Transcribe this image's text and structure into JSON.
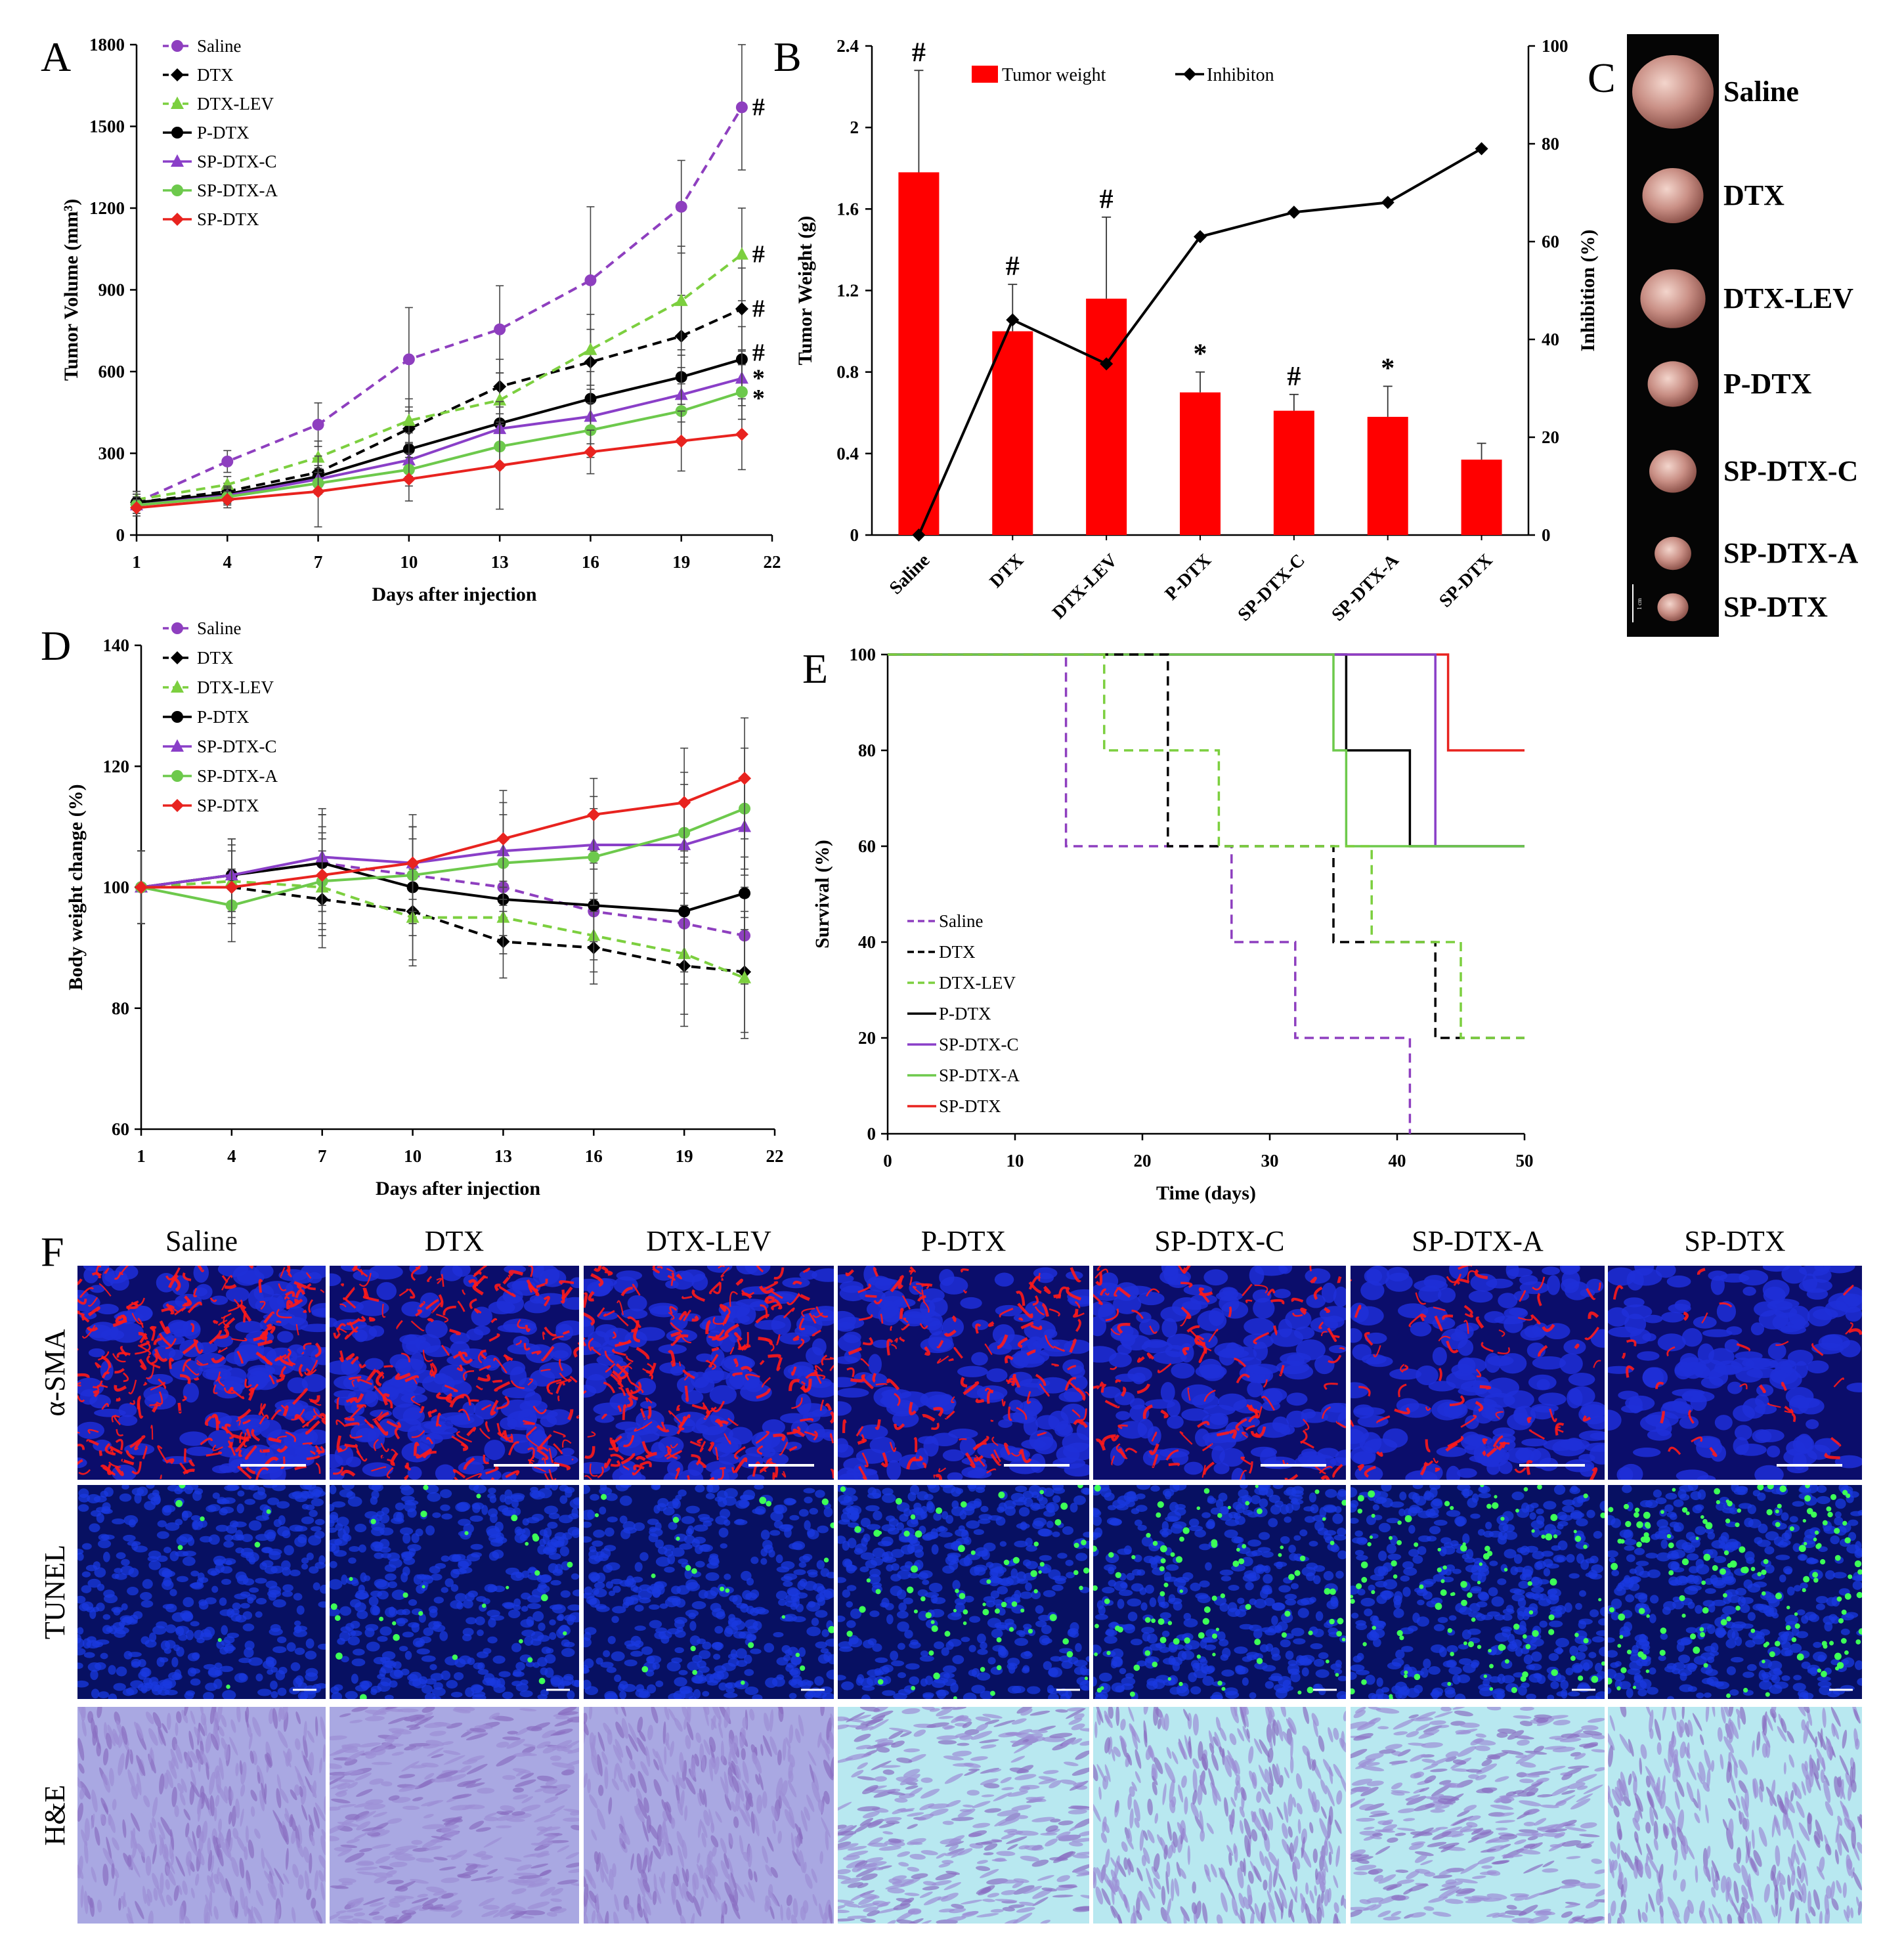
{
  "colors": {
    "Saline": "#8e3fbf",
    "DTX": "#000000",
    "DTX-LEV": "#7ccf3f",
    "P-DTX": "#000000",
    "SP-DTX-C": "#8a3fc8",
    "SP-DTX-A": "#6dc94c",
    "SP-DTX": "#e8231f",
    "bar_fill": "#ff0000",
    "nucleus_blue": "#1f2fd8",
    "sma_red": "#ff1a1a",
    "tunel_green": "#3dff57",
    "he_background": "#a9a8e2",
    "he_light": "#b8e8f0"
  },
  "chart_data": [
    {
      "panel": "A",
      "type": "line",
      "title": "",
      "xlabel": "Days after injection",
      "ylabel": "Tumor Volume (mm³)",
      "xlim": [
        1,
        22
      ],
      "ylim": [
        0,
        1800
      ],
      "xticks": [
        "1",
        "4",
        "7",
        "10",
        "13",
        "16",
        "19",
        "22"
      ],
      "yticks": [
        "0",
        "300",
        "600",
        "900",
        "1200",
        "1500",
        "1800"
      ],
      "x": [
        1,
        4,
        7,
        10,
        13,
        16,
        19,
        21
      ],
      "series": [
        {
          "name": "Saline",
          "style": "dashed",
          "marker": "circle",
          "values": [
            120,
            270,
            405,
            645,
            755,
            935,
            1205,
            1570
          ],
          "errors": [
            40,
            40,
            80,
            190,
            160,
            270,
            170,
            230
          ],
          "sig": "#"
        },
        {
          "name": "DTX",
          "style": "dashed",
          "marker": "diamond",
          "values": [
            120,
            160,
            230,
            390,
            545,
            635,
            730,
            830
          ],
          "errors": [
            30,
            30,
            50,
            80,
            100,
            120,
            150,
            150
          ],
          "sig": "#"
        },
        {
          "name": "DTX-LEV",
          "style": "dashed",
          "marker": "triangle",
          "values": [
            130,
            185,
            285,
            420,
            495,
            680,
            860,
            1030
          ],
          "errors": [
            30,
            30,
            60,
            80,
            100,
            130,
            200,
            170
          ],
          "sig": "#"
        },
        {
          "name": "P-DTX",
          "style": "solid",
          "marker": "circle",
          "values": [
            120,
            150,
            215,
            315,
            410,
            500,
            580,
            645
          ],
          "errors": [
            30,
            30,
            40,
            60,
            80,
            100,
            100,
            120
          ],
          "sig": "#"
        },
        {
          "name": "SP-DTX-C",
          "style": "solid",
          "marker": "triangle",
          "values": [
            110,
            145,
            205,
            275,
            390,
            435,
            515,
            575
          ],
          "errors": [
            30,
            30,
            40,
            60,
            80,
            100,
            100,
            100
          ],
          "sig": "*"
        },
        {
          "name": "SP-DTX-A",
          "style": "solid",
          "marker": "circle",
          "values": [
            110,
            140,
            190,
            240,
            325,
            385,
            455,
            525
          ],
          "errors": [
            30,
            30,
            40,
            60,
            80,
            100,
            100,
            100
          ],
          "sig": "*"
        },
        {
          "name": "SP-DTX",
          "style": "solid",
          "marker": "diamond",
          "values": [
            100,
            130,
            160,
            205,
            255,
            305,
            345,
            370
          ],
          "errors": [
            30,
            30,
            130,
            80,
            160,
            80,
            110,
            130
          ],
          "sig": ""
        }
      ]
    },
    {
      "panel": "B",
      "type": "bar",
      "title": "",
      "xlabel": "",
      "ylabel": "Tumor Weight (g)",
      "y2label": "Inhibition (%)",
      "categories": [
        "Saline",
        "DTX",
        "DTX-LEV",
        "P-DTX",
        "SP-DTX-C",
        "SP-DTX-A",
        "SP-DTX"
      ],
      "ylim": [
        0,
        2.4
      ],
      "y2lim": [
        0,
        100
      ],
      "yticks": [
        "0",
        "0.4",
        "0.8",
        "1.2",
        "1.6",
        "2",
        "2.4"
      ],
      "y2ticks": [
        "0",
        "20",
        "40",
        "60",
        "80",
        "100"
      ],
      "legend": [
        "Tumor weight",
        "Inhibiton"
      ],
      "series": [
        {
          "name": "Tumor weight",
          "type": "bar",
          "values": [
            1.78,
            1.0,
            1.16,
            0.7,
            0.61,
            0.58,
            0.37
          ],
          "errors": [
            0.5,
            0.23,
            0.4,
            0.1,
            0.08,
            0.15,
            0.08
          ],
          "sig": [
            "#",
            "#",
            "#",
            "*",
            "#",
            "*",
            ""
          ]
        },
        {
          "name": "Inhibiton",
          "type": "line",
          "axis": "right",
          "values": [
            0,
            44,
            35,
            61,
            66,
            68,
            79
          ]
        }
      ]
    },
    {
      "panel": "D",
      "type": "line",
      "title": "",
      "xlabel": "Days after injection",
      "ylabel": "Body weight change (%)",
      "xlim": [
        1,
        22
      ],
      "ylim": [
        60,
        140
      ],
      "xticks": [
        "1",
        "4",
        "7",
        "10",
        "13",
        "16",
        "19",
        "22"
      ],
      "yticks": [
        "60",
        "80",
        "100",
        "120",
        "140"
      ],
      "x": [
        1,
        4,
        7,
        10,
        13,
        16,
        19,
        21
      ],
      "series": [
        {
          "name": "Saline",
          "style": "dashed",
          "marker": "circle",
          "values": [
            100,
            102,
            104,
            102,
            100,
            96,
            94,
            92
          ],
          "errors": [
            6,
            6,
            8,
            8,
            8,
            8,
            10,
            8
          ]
        },
        {
          "name": "DTX",
          "style": "dashed",
          "marker": "diamond",
          "values": [
            100,
            100,
            98,
            96,
            91,
            90,
            87,
            86
          ],
          "errors": [
            6,
            6,
            8,
            8,
            6,
            6,
            10,
            10
          ]
        },
        {
          "name": "DTX-LEV",
          "style": "dashed",
          "marker": "triangle",
          "values": [
            100,
            101,
            100,
            95,
            95,
            92,
            89,
            85
          ],
          "errors": [
            6,
            6,
            8,
            8,
            6,
            6,
            10,
            10
          ]
        },
        {
          "name": "P-DTX",
          "style": "solid",
          "marker": "circle",
          "values": [
            100,
            102,
            104,
            100,
            98,
            97,
            96,
            99
          ],
          "errors": [
            6,
            6,
            8,
            8,
            6,
            6,
            10,
            6
          ]
        },
        {
          "name": "SP-DTX-C",
          "style": "solid",
          "marker": "triangle",
          "values": [
            100,
            102,
            105,
            104,
            106,
            107,
            107,
            110
          ],
          "errors": [
            6,
            6,
            8,
            8,
            8,
            8,
            10,
            8
          ]
        },
        {
          "name": "SP-DTX-A",
          "style": "solid",
          "marker": "circle",
          "values": [
            100,
            97,
            101,
            102,
            104,
            105,
            109,
            113
          ],
          "errors": [
            6,
            6,
            8,
            8,
            8,
            8,
            10,
            10
          ]
        },
        {
          "name": "SP-DTX",
          "style": "solid",
          "marker": "diamond",
          "values": [
            100,
            100,
            102,
            104,
            108,
            112,
            114,
            118
          ],
          "errors": [
            6,
            6,
            8,
            6,
            8,
            6,
            9,
            10
          ]
        }
      ]
    },
    {
      "panel": "E",
      "type": "line",
      "title": "",
      "xlabel": "Time (days)",
      "ylabel": "Survival (%)",
      "xlim": [
        0,
        50
      ],
      "ylim": [
        0,
        100
      ],
      "xticks": [
        "0",
        "10",
        "20",
        "30",
        "40",
        "50"
      ],
      "yticks": [
        "0",
        "20",
        "40",
        "60",
        "80",
        "100"
      ],
      "series": [
        {
          "name": "Saline",
          "style": "dashed",
          "steps": [
            [
              0,
              100
            ],
            [
              14,
              60
            ],
            [
              27,
              40
            ],
            [
              32,
              20
            ],
            [
              41,
              0
            ]
          ]
        },
        {
          "name": "DTX",
          "style": "dashed",
          "steps": [
            [
              0,
              100
            ],
            [
              22,
              60
            ],
            [
              35,
              40
            ],
            [
              43,
              20
            ],
            [
              50,
              20
            ]
          ]
        },
        {
          "name": "DTX-LEV",
          "style": "dashed",
          "steps": [
            [
              0,
              100
            ],
            [
              17,
              80
            ],
            [
              26,
              60
            ],
            [
              38,
              40
            ],
            [
              45,
              20
            ],
            [
              50,
              20
            ]
          ]
        },
        {
          "name": "P-DTX",
          "style": "solid",
          "steps": [
            [
              0,
              100
            ],
            [
              36,
              80
            ],
            [
              41,
              60
            ],
            [
              50,
              60
            ]
          ]
        },
        {
          "name": "SP-DTX-C",
          "style": "solid",
          "steps": [
            [
              0,
              100
            ],
            [
              43,
              60
            ],
            [
              50,
              60
            ]
          ]
        },
        {
          "name": "SP-DTX-A",
          "style": "solid",
          "steps": [
            [
              0,
              100
            ],
            [
              35,
              80
            ],
            [
              36,
              60
            ],
            [
              50,
              60
            ]
          ]
        },
        {
          "name": "SP-DTX",
          "style": "solid",
          "steps": [
            [
              0,
              100
            ],
            [
              44,
              80
            ],
            [
              50,
              80
            ]
          ]
        }
      ]
    }
  ],
  "panel_letters": {
    "a": "A",
    "b": "B",
    "c": "C",
    "d": "D",
    "e": "E",
    "f": "F"
  },
  "panel_c": {
    "labels": [
      "Saline",
      "DTX",
      "DTX-LEV",
      "P-DTX",
      "SP-DTX-C",
      "SP-DTX-A",
      "SP-DTX"
    ],
    "tumor_relative_size": [
      1.0,
      0.75,
      0.8,
      0.62,
      0.58,
      0.45,
      0.38
    ],
    "scale_bar_text": "1 cm"
  },
  "panel_f": {
    "columns": [
      "Saline",
      "DTX",
      "DTX-LEV",
      "P-DTX",
      "SP-DTX-C",
      "SP-DTX-A",
      "SP-DTX"
    ],
    "rows": [
      "α-SMA",
      "TUNEL",
      "H&E"
    ],
    "sma_intensity": [
      1.0,
      0.85,
      0.9,
      0.55,
      0.45,
      0.3,
      0.12
    ],
    "tunel_density": [
      0.05,
      0.2,
      0.15,
      0.45,
      0.6,
      0.7,
      1.0
    ]
  }
}
